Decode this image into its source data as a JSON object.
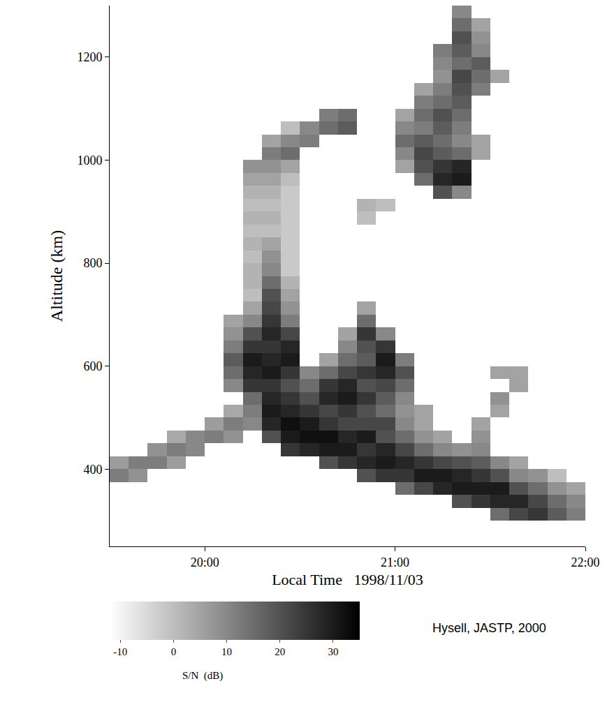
{
  "chart_data": {
    "type": "heatmap",
    "x_label": "Local Time   1998/11/03",
    "y_label": "Altitude (km)",
    "annotations": [
      "Hysell, JASTP, 2000"
    ],
    "colorbar_title": "S/N  (dB)",
    "colorbar_range": [
      -12,
      35
    ],
    "colorbar_ticks": [
      -10,
      0,
      10,
      20,
      30
    ],
    "grid": false,
    "xlim": [
      19.5,
      22
    ],
    "xticks": [
      {
        "value": 20,
        "label": "20:00"
      },
      {
        "value": 21,
        "label": "21:00"
      },
      {
        "value": 22,
        "label": "22:00"
      }
    ],
    "ylim": [
      250,
      1300
    ],
    "yticks": [
      400,
      600,
      800,
      1000,
      1200
    ],
    "x": [
      19.5,
      19.6,
      19.7,
      19.8,
      19.9,
      20.0,
      20.1,
      20.2,
      20.3,
      20.4,
      20.5,
      20.6,
      20.7,
      20.8,
      20.9,
      21.0,
      21.1,
      21.2,
      21.3,
      21.4,
      21.5,
      21.6,
      21.7,
      21.8,
      21.9,
      22.0
    ],
    "y": [
      250,
      275,
      300,
      325,
      350,
      375,
      400,
      425,
      450,
      475,
      500,
      525,
      550,
      575,
      600,
      625,
      650,
      675,
      700,
      725,
      750,
      775,
      800,
      825,
      850,
      875,
      900,
      925,
      950,
      975,
      1000,
      1025,
      1050,
      1075,
      1100,
      1125,
      1150,
      1175,
      1200,
      1225,
      1250,
      1275,
      1300
    ],
    "z": [
      [
        null,
        null,
        null,
        null,
        null,
        12,
        6,
        null,
        null,
        null,
        null,
        null,
        null,
        null,
        null,
        null,
        null,
        null,
        null,
        null,
        null,
        null,
        null,
        null,
        null,
        null,
        null,
        null,
        null,
        null,
        null,
        null,
        null,
        null,
        null,
        null,
        null,
        null,
        null,
        null,
        null,
        null
      ],
      [
        null,
        null,
        null,
        null,
        null,
        8,
        12,
        null,
        null,
        null,
        null,
        null,
        null,
        null,
        null,
        null,
        null,
        null,
        null,
        null,
        null,
        null,
        null,
        null,
        null,
        null,
        null,
        null,
        null,
        null,
        null,
        null,
        null,
        null,
        null,
        null,
        null,
        null,
        null,
        null,
        null,
        null
      ],
      [
        null,
        null,
        null,
        null,
        null,
        null,
        12,
        8,
        null,
        null,
        null,
        null,
        null,
        null,
        null,
        null,
        null,
        null,
        null,
        null,
        null,
        null,
        null,
        null,
        null,
        null,
        null,
        null,
        null,
        null,
        null,
        null,
        null,
        null,
        null,
        null,
        null,
        null,
        null,
        null,
        null,
        null
      ],
      [
        null,
        null,
        null,
        null,
        null,
        null,
        6,
        12,
        4,
        null,
        null,
        null,
        null,
        null,
        null,
        null,
        null,
        null,
        null,
        null,
        null,
        null,
        null,
        null,
        null,
        null,
        null,
        null,
        null,
        null,
        null,
        null,
        null,
        null,
        null,
        null,
        null,
        null,
        null,
        null,
        null,
        null
      ],
      [
        null,
        null,
        null,
        null,
        null,
        null,
        null,
        10,
        10,
        null,
        null,
        null,
        null,
        null,
        null,
        null,
        null,
        null,
        null,
        null,
        null,
        null,
        null,
        null,
        null,
        null,
        null,
        null,
        null,
        null,
        null,
        null,
        null,
        null,
        null,
        null,
        null,
        null,
        null,
        null,
        null,
        null
      ],
      [
        null,
        null,
        null,
        null,
        null,
        null,
        null,
        null,
        12,
        6,
        null,
        null,
        null,
        null,
        null,
        null,
        null,
        null,
        null,
        null,
        null,
        null,
        null,
        null,
        null,
        null,
        null,
        null,
        null,
        null,
        null,
        null,
        null,
        null,
        null,
        null,
        null,
        null,
        null,
        null,
        null,
        null
      ],
      [
        null,
        null,
        null,
        null,
        null,
        null,
        null,
        null,
        8,
        12,
        4,
        null,
        10,
        15,
        18,
        12,
        8,
        5,
        null,
        null,
        null,
        null,
        null,
        null,
        null,
        null,
        null,
        null,
        null,
        null,
        null,
        null,
        null,
        null,
        null,
        null,
        null,
        null,
        null,
        null,
        null,
        null
      ],
      [
        null,
        null,
        null,
        null,
        null,
        null,
        null,
        null,
        null,
        10,
        12,
        15,
        25,
        28,
        30,
        25,
        20,
        10,
        5,
        0,
        2,
        2,
        0,
        2,
        0,
        2,
        0,
        2,
        5,
        8,
        null,
        null,
        null,
        null,
        null,
        null,
        null,
        null,
        null,
        null,
        null,
        null
      ],
      [
        null,
        null,
        null,
        null,
        null,
        null,
        null,
        null,
        20,
        28,
        30,
        28,
        25,
        30,
        28,
        25,
        28,
        25,
        22,
        20,
        15,
        10,
        8,
        5,
        0,
        2,
        0,
        2,
        5,
        8,
        12,
        5,
        null,
        null,
        null,
        null,
        null,
        null,
        null,
        null,
        null,
        null
      ],
      [
        null,
        null,
        null,
        null,
        null,
        null,
        null,
        25,
        30,
        32,
        28,
        25,
        20,
        25,
        30,
        28,
        22,
        12,
        8,
        5,
        2,
        -2,
        -2,
        -2,
        -2,
        -2,
        -2,
        -2,
        0,
        5,
        15,
        10,
        0,
        null,
        null,
        null,
        null,
        null,
        null,
        null,
        null,
        null
      ],
      [
        null,
        null,
        null,
        null,
        null,
        null,
        null,
        28,
        32,
        30,
        25,
        20,
        15,
        10,
        null,
        null,
        null,
        null,
        null,
        null,
        null,
        null,
        null,
        null,
        null,
        null,
        null,
        null,
        null,
        null,
        null,
        12,
        10,
        null,
        null,
        null,
        null,
        null,
        null,
        null,
        null,
        null
      ],
      [
        null,
        null,
        null,
        null,
        null,
        null,
        20,
        30,
        32,
        25,
        22,
        28,
        25,
        15,
        5,
        null,
        null,
        null,
        null,
        null,
        null,
        null,
        null,
        null,
        null,
        null,
        null,
        null,
        null,
        null,
        null,
        null,
        15,
        12,
        null,
        null,
        null,
        null,
        null,
        null,
        null,
        null
      ],
      [
        null,
        null,
        null,
        null,
        null,
        null,
        25,
        30,
        28,
        22,
        25,
        30,
        28,
        22,
        15,
        10,
        5,
        null,
        null,
        null,
        null,
        null,
        null,
        null,
        null,
        null,
        null,
        null,
        null,
        null,
        null,
        null,
        18,
        15,
        null,
        null,
        null,
        null,
        null,
        null,
        null,
        null
      ],
      [
        null,
        null,
        null,
        null,
        null,
        20,
        28,
        25,
        30,
        22,
        20,
        25,
        20,
        25,
        18,
        20,
        25,
        15,
        5,
        null,
        null,
        null,
        null,
        null,
        null,
        0,
        2,
        null,
        null,
        null,
        null,
        null,
        null,
        null,
        null,
        null,
        null,
        null,
        null,
        null,
        null,
        null
      ],
      [
        null,
        null,
        null,
        null,
        null,
        25,
        30,
        28,
        20,
        22,
        15,
        18,
        22,
        28,
        30,
        25,
        10,
        null,
        null,
        null,
        null,
        null,
        null,
        null,
        null,
        null,
        0,
        null,
        null,
        null,
        null,
        null,
        null,
        null,
        null,
        null,
        null,
        null,
        null,
        null,
        null,
        null
      ],
      [
        null,
        null,
        null,
        null,
        15,
        25,
        28,
        22,
        15,
        10,
        8,
        10,
        15,
        20,
        12,
        null,
        null,
        null,
        null,
        null,
        null,
        null,
        null,
        null,
        null,
        null,
        null,
        null,
        null,
        5,
        10,
        15,
        10,
        5,
        null,
        null,
        null,
        null,
        null,
        null,
        null,
        null
      ],
      [
        null,
        null,
        null,
        null,
        22,
        30,
        25,
        15,
        8,
        5,
        5,
        null,
        null,
        null,
        null,
        null,
        null,
        null,
        null,
        null,
        null,
        null,
        null,
        null,
        null,
        null,
        null,
        null,
        15,
        20,
        22,
        18,
        12,
        15,
        12,
        5,
        null,
        null,
        null,
        null,
        null,
        null
      ],
      [
        null,
        null,
        null,
        null,
        28,
        30,
        22,
        10,
        5,
        null,
        null,
        null,
        null,
        null,
        null,
        null,
        null,
        null,
        null,
        null,
        null,
        null,
        null,
        null,
        null,
        null,
        null,
        20,
        28,
        25,
        18,
        15,
        18,
        20,
        15,
        12,
        8,
        10,
        12,
        null,
        null,
        null
      ],
      [
        null,
        null,
        null,
        20,
        30,
        28,
        20,
        8,
        null,
        null,
        null,
        null,
        null,
        null,
        null,
        null,
        null,
        null,
        null,
        null,
        null,
        null,
        null,
        null,
        null,
        null,
        null,
        10,
        30,
        28,
        15,
        10,
        12,
        15,
        18,
        20,
        22,
        15,
        18,
        20,
        15,
        10
      ],
      [
        null,
        null,
        null,
        25,
        30,
        25,
        18,
        10,
        8,
        5,
        null,
        null,
        null,
        null,
        null,
        null,
        null,
        null,
        null,
        null,
        null,
        null,
        null,
        null,
        null,
        null,
        null,
        null,
        null,
        null,
        5,
        5,
        null,
        null,
        null,
        12,
        15,
        18,
        10,
        8,
        5,
        null
      ],
      [
        null,
        null,
        15,
        28,
        30,
        20,
        10,
        null,
        null,
        null,
        5,
        8,
        null,
        5,
        null,
        null,
        null,
        null,
        null,
        null,
        null,
        null,
        null,
        null,
        null,
        null,
        null,
        null,
        null,
        null,
        null,
        null,
        null,
        null,
        null,
        null,
        5,
        null,
        null,
        null,
        null,
        null
      ],
      [
        null,
        null,
        22,
        28,
        20,
        10,
        5,
        null,
        null,
        null,
        null,
        null,
        5,
        5,
        null,
        null,
        null,
        null,
        null,
        null,
        null,
        null,
        null,
        null,
        null,
        null,
        null,
        null,
        null,
        null,
        null,
        null,
        null,
        null,
        null,
        null,
        null,
        null,
        null,
        null,
        null,
        null
      ],
      [
        null,
        null,
        25,
        22,
        15,
        8,
        null,
        null,
        null,
        null,
        null,
        null,
        null,
        null,
        null,
        null,
        null,
        null,
        null,
        null,
        null,
        null,
        null,
        null,
        null,
        null,
        null,
        null,
        null,
        null,
        null,
        null,
        null,
        null,
        null,
        null,
        null,
        null,
        null,
        null,
        null,
        null
      ],
      [
        null,
        null,
        18,
        15,
        8,
        0,
        null,
        null,
        null,
        null,
        null,
        null,
        null,
        null,
        null,
        null,
        null,
        null,
        null,
        null,
        null,
        null,
        null,
        null,
        null,
        null,
        null,
        null,
        null,
        null,
        null,
        null,
        null,
        null,
        null,
        null,
        null,
        null,
        null,
        null,
        null,
        null
      ],
      [
        null,
        null,
        12,
        10,
        5,
        null,
        null,
        null,
        null,
        null,
        null,
        null,
        null,
        null,
        null,
        null,
        null,
        null,
        null,
        null,
        null,
        null,
        null,
        null,
        null,
        null,
        null,
        null,
        null,
        null,
        null,
        null,
        null,
        null,
        null,
        null,
        null,
        null,
        null,
        null,
        null,
        null
      ]
    ]
  }
}
